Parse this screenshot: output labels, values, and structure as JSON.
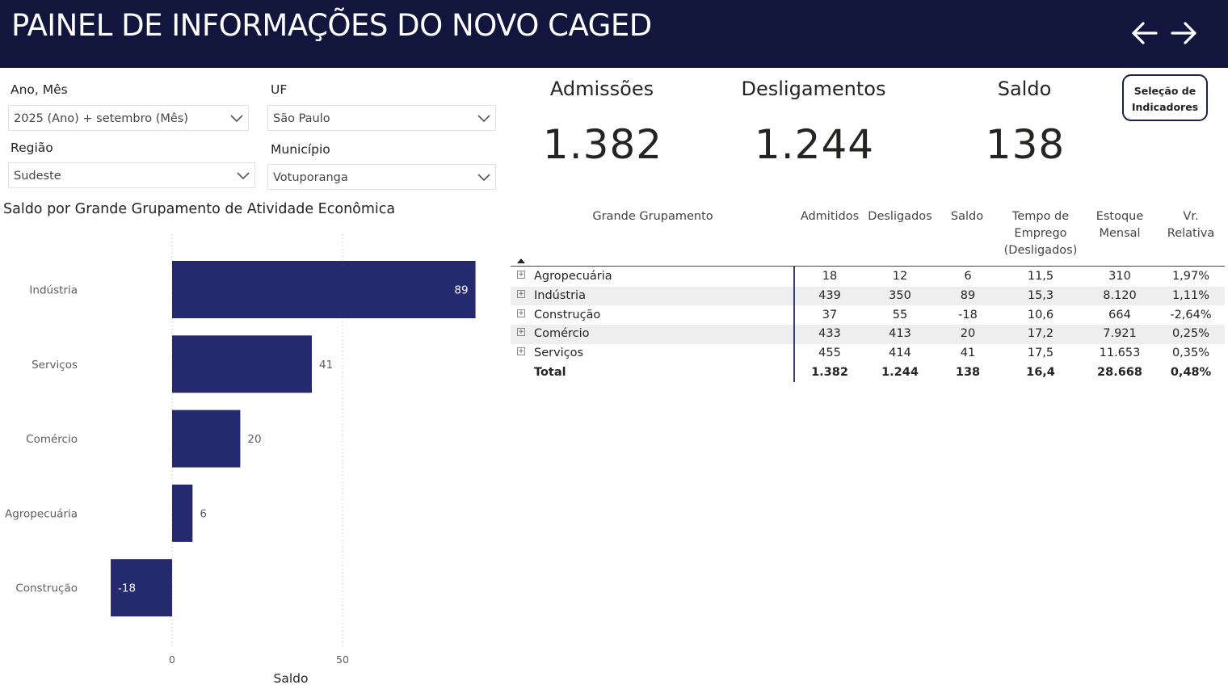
{
  "header": {
    "title": "PAINEL DE INFORMAÇÕES DO NOVO CAGED"
  },
  "filters": {
    "ano_mes": {
      "label": "Ano, Mês",
      "value": "2025 (Ano) + setembro (Mês)"
    },
    "uf": {
      "label": "UF",
      "value": "São Paulo"
    },
    "regiao": {
      "label": "Região",
      "value": "Sudeste"
    },
    "municipio": {
      "label": "Município",
      "value": "Votuporanga"
    }
  },
  "kpis": {
    "admissoes": {
      "label": "Admissões",
      "value": "1.382"
    },
    "desligamentos": {
      "label": "Desligamentos",
      "value": "1.244"
    },
    "saldo": {
      "label": "Saldo",
      "value": "138"
    }
  },
  "select_button": {
    "line1": "Seleção de",
    "line2": "Indicadores"
  },
  "chart_title": "Saldo por Grande Grupamento de Atividade Econômica",
  "chart_data": {
    "type": "bar",
    "orientation": "horizontal",
    "title": "Saldo por Grande Grupamento de Atividade Econômica",
    "categories": [
      "Indústria",
      "Serviços",
      "Comércio",
      "Agropecuária",
      "Construção"
    ],
    "values": [
      89,
      41,
      20,
      6,
      -18
    ],
    "xlabel": "Saldo",
    "ylabel": "",
    "xlim": [
      -18,
      89
    ],
    "xticks": [
      0,
      50
    ],
    "data_labels": [
      "89",
      "41",
      "20",
      "6",
      "-18"
    ],
    "grid": true,
    "color": "#252a6e"
  },
  "table": {
    "headers": {
      "grupamento": "Grande Grupamento",
      "admitidos": "Admitidos",
      "desligados": "Desligados",
      "saldo": "Saldo",
      "tempo_1": "Tempo de",
      "tempo_2": "Emprego",
      "tempo_3": "(Desligados)",
      "estoque_1": "Estoque",
      "estoque_2": "Mensal",
      "vr_1": "Vr.",
      "vr_2": "Relativa"
    },
    "rows": [
      {
        "name": "Agropecuária",
        "admitidos": "18",
        "desligados": "12",
        "saldo": "6",
        "tempo": "11,5",
        "estoque": "310",
        "vr": "1,97%"
      },
      {
        "name": "Indústria",
        "admitidos": "439",
        "desligados": "350",
        "saldo": "89",
        "tempo": "15,3",
        "estoque": "8.120",
        "vr": "1,11%"
      },
      {
        "name": "Construção",
        "admitidos": "37",
        "desligados": "55",
        "saldo": "-18",
        "tempo": "10,6",
        "estoque": "664",
        "vr": "-2,64%"
      },
      {
        "name": "Comércio",
        "admitidos": "433",
        "desligados": "413",
        "saldo": "20",
        "tempo": "17,2",
        "estoque": "7.921",
        "vr": "0,25%"
      },
      {
        "name": "Serviços",
        "admitidos": "455",
        "desligados": "414",
        "saldo": "41",
        "tempo": "17,5",
        "estoque": "11.653",
        "vr": "0,35%"
      }
    ],
    "total": {
      "name": "Total",
      "admitidos": "1.382",
      "desligados": "1.244",
      "saldo": "138",
      "tempo": "16,4",
      "estoque": "28.668",
      "vr": "0,48%"
    }
  }
}
